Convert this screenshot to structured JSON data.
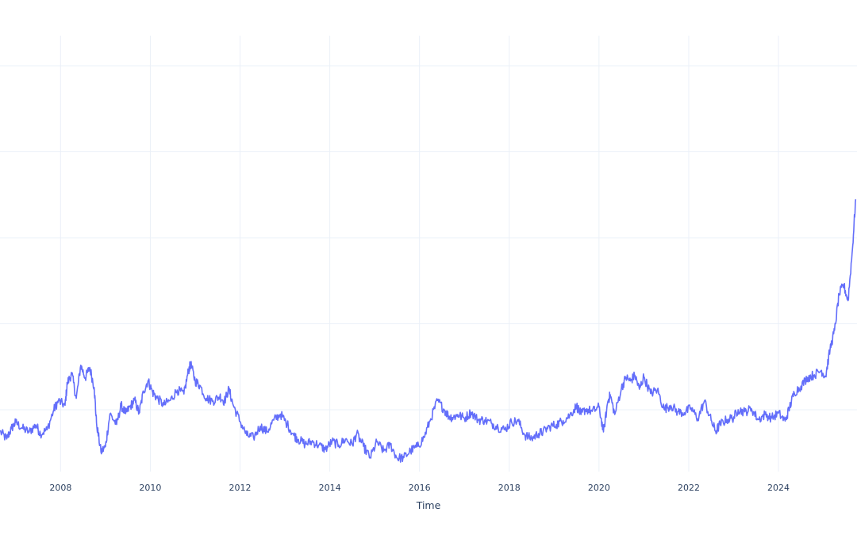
{
  "chart_data": {
    "type": "line",
    "title": "",
    "xlabel": "Time",
    "ylabel": "",
    "x_ticks": [
      "2008",
      "2010",
      "2012",
      "2014",
      "2016",
      "2018",
      "2020",
      "2022",
      "2024"
    ],
    "xlim": [
      2006.65,
      2025.75
    ],
    "ylim": [
      0.0,
      1.0
    ],
    "grid": true,
    "legend": "none",
    "line_color": "#636efa",
    "x": [
      2006.65,
      2006.8,
      2006.9,
      2007.0,
      2007.15,
      2007.3,
      2007.45,
      2007.55,
      2007.7,
      2007.85,
      2007.95,
      2008.1,
      2008.15,
      2008.25,
      2008.35,
      2008.45,
      2008.55,
      2008.65,
      2008.75,
      2008.8,
      2008.9,
      2009.0,
      2009.1,
      2009.25,
      2009.35,
      2009.45,
      2009.55,
      2009.65,
      2009.75,
      2009.85,
      2009.95,
      2010.05,
      2010.15,
      2010.3,
      2010.45,
      2010.6,
      2010.75,
      2010.85,
      2010.9,
      2011.0,
      2011.1,
      2011.25,
      2011.4,
      2011.55,
      2011.65,
      2011.75,
      2011.85,
      2012.0,
      2012.15,
      2012.3,
      2012.45,
      2012.6,
      2012.75,
      2012.9,
      2013.05,
      2013.2,
      2013.3,
      2013.45,
      2013.6,
      2013.75,
      2013.9,
      2014.05,
      2014.2,
      2014.35,
      2014.5,
      2014.6,
      2014.75,
      2014.9,
      2015.05,
      2015.2,
      2015.35,
      2015.5,
      2015.65,
      2015.8,
      2015.95,
      2016.1,
      2016.25,
      2016.4,
      2016.55,
      2016.65,
      2016.75,
      2016.85,
      2017.0,
      2017.15,
      2017.3,
      2017.45,
      2017.6,
      2017.75,
      2017.9,
      2018.05,
      2018.2,
      2018.35,
      2018.5,
      2018.65,
      2018.75,
      2018.9,
      2019.05,
      2019.2,
      2019.35,
      2019.5,
      2019.6,
      2019.7,
      2019.85,
      2020.0,
      2020.1,
      2020.2,
      2020.25,
      2020.35,
      2020.5,
      2020.6,
      2020.7,
      2020.8,
      2020.9,
      2021.0,
      2021.15,
      2021.3,
      2021.45,
      2021.6,
      2021.75,
      2021.9,
      2022.05,
      2022.2,
      2022.35,
      2022.5,
      2022.6,
      2022.7,
      2022.85,
      2023.0,
      2023.1,
      2023.25,
      2023.4,
      2023.55,
      2023.7,
      2023.85,
      2024.0,
      2024.15,
      2024.25,
      2024.35,
      2024.5,
      2024.65,
      2024.8,
      2024.95,
      2025.05,
      2025.15,
      2025.25,
      2025.35,
      2025.45,
      2025.55,
      2025.65,
      2025.72
    ],
    "y": [
      0.092,
      0.075,
      0.098,
      0.113,
      0.099,
      0.091,
      0.107,
      0.087,
      0.096,
      0.142,
      0.162,
      0.152,
      0.203,
      0.225,
      0.168,
      0.244,
      0.215,
      0.239,
      0.193,
      0.112,
      0.045,
      0.057,
      0.132,
      0.108,
      0.152,
      0.133,
      0.149,
      0.164,
      0.134,
      0.184,
      0.209,
      0.182,
      0.169,
      0.153,
      0.164,
      0.187,
      0.178,
      0.232,
      0.247,
      0.208,
      0.198,
      0.168,
      0.162,
      0.173,
      0.161,
      0.189,
      0.152,
      0.115,
      0.083,
      0.078,
      0.104,
      0.091,
      0.118,
      0.132,
      0.109,
      0.083,
      0.074,
      0.063,
      0.069,
      0.061,
      0.051,
      0.069,
      0.061,
      0.074,
      0.062,
      0.087,
      0.058,
      0.032,
      0.068,
      0.047,
      0.062,
      0.031,
      0.032,
      0.048,
      0.057,
      0.078,
      0.121,
      0.163,
      0.142,
      0.127,
      0.124,
      0.131,
      0.122,
      0.136,
      0.119,
      0.118,
      0.111,
      0.102,
      0.096,
      0.114,
      0.116,
      0.083,
      0.076,
      0.087,
      0.091,
      0.103,
      0.108,
      0.117,
      0.129,
      0.151,
      0.131,
      0.143,
      0.138,
      0.148,
      0.091,
      0.162,
      0.176,
      0.131,
      0.191,
      0.216,
      0.208,
      0.221,
      0.189,
      0.218,
      0.179,
      0.188,
      0.143,
      0.152,
      0.137,
      0.135,
      0.146,
      0.121,
      0.162,
      0.117,
      0.092,
      0.109,
      0.119,
      0.124,
      0.142,
      0.137,
      0.144,
      0.119,
      0.131,
      0.123,
      0.134,
      0.116,
      0.148,
      0.181,
      0.196,
      0.216,
      0.222,
      0.232,
      0.218,
      0.281,
      0.324,
      0.406,
      0.429,
      0.392,
      0.511,
      0.625
    ]
  }
}
